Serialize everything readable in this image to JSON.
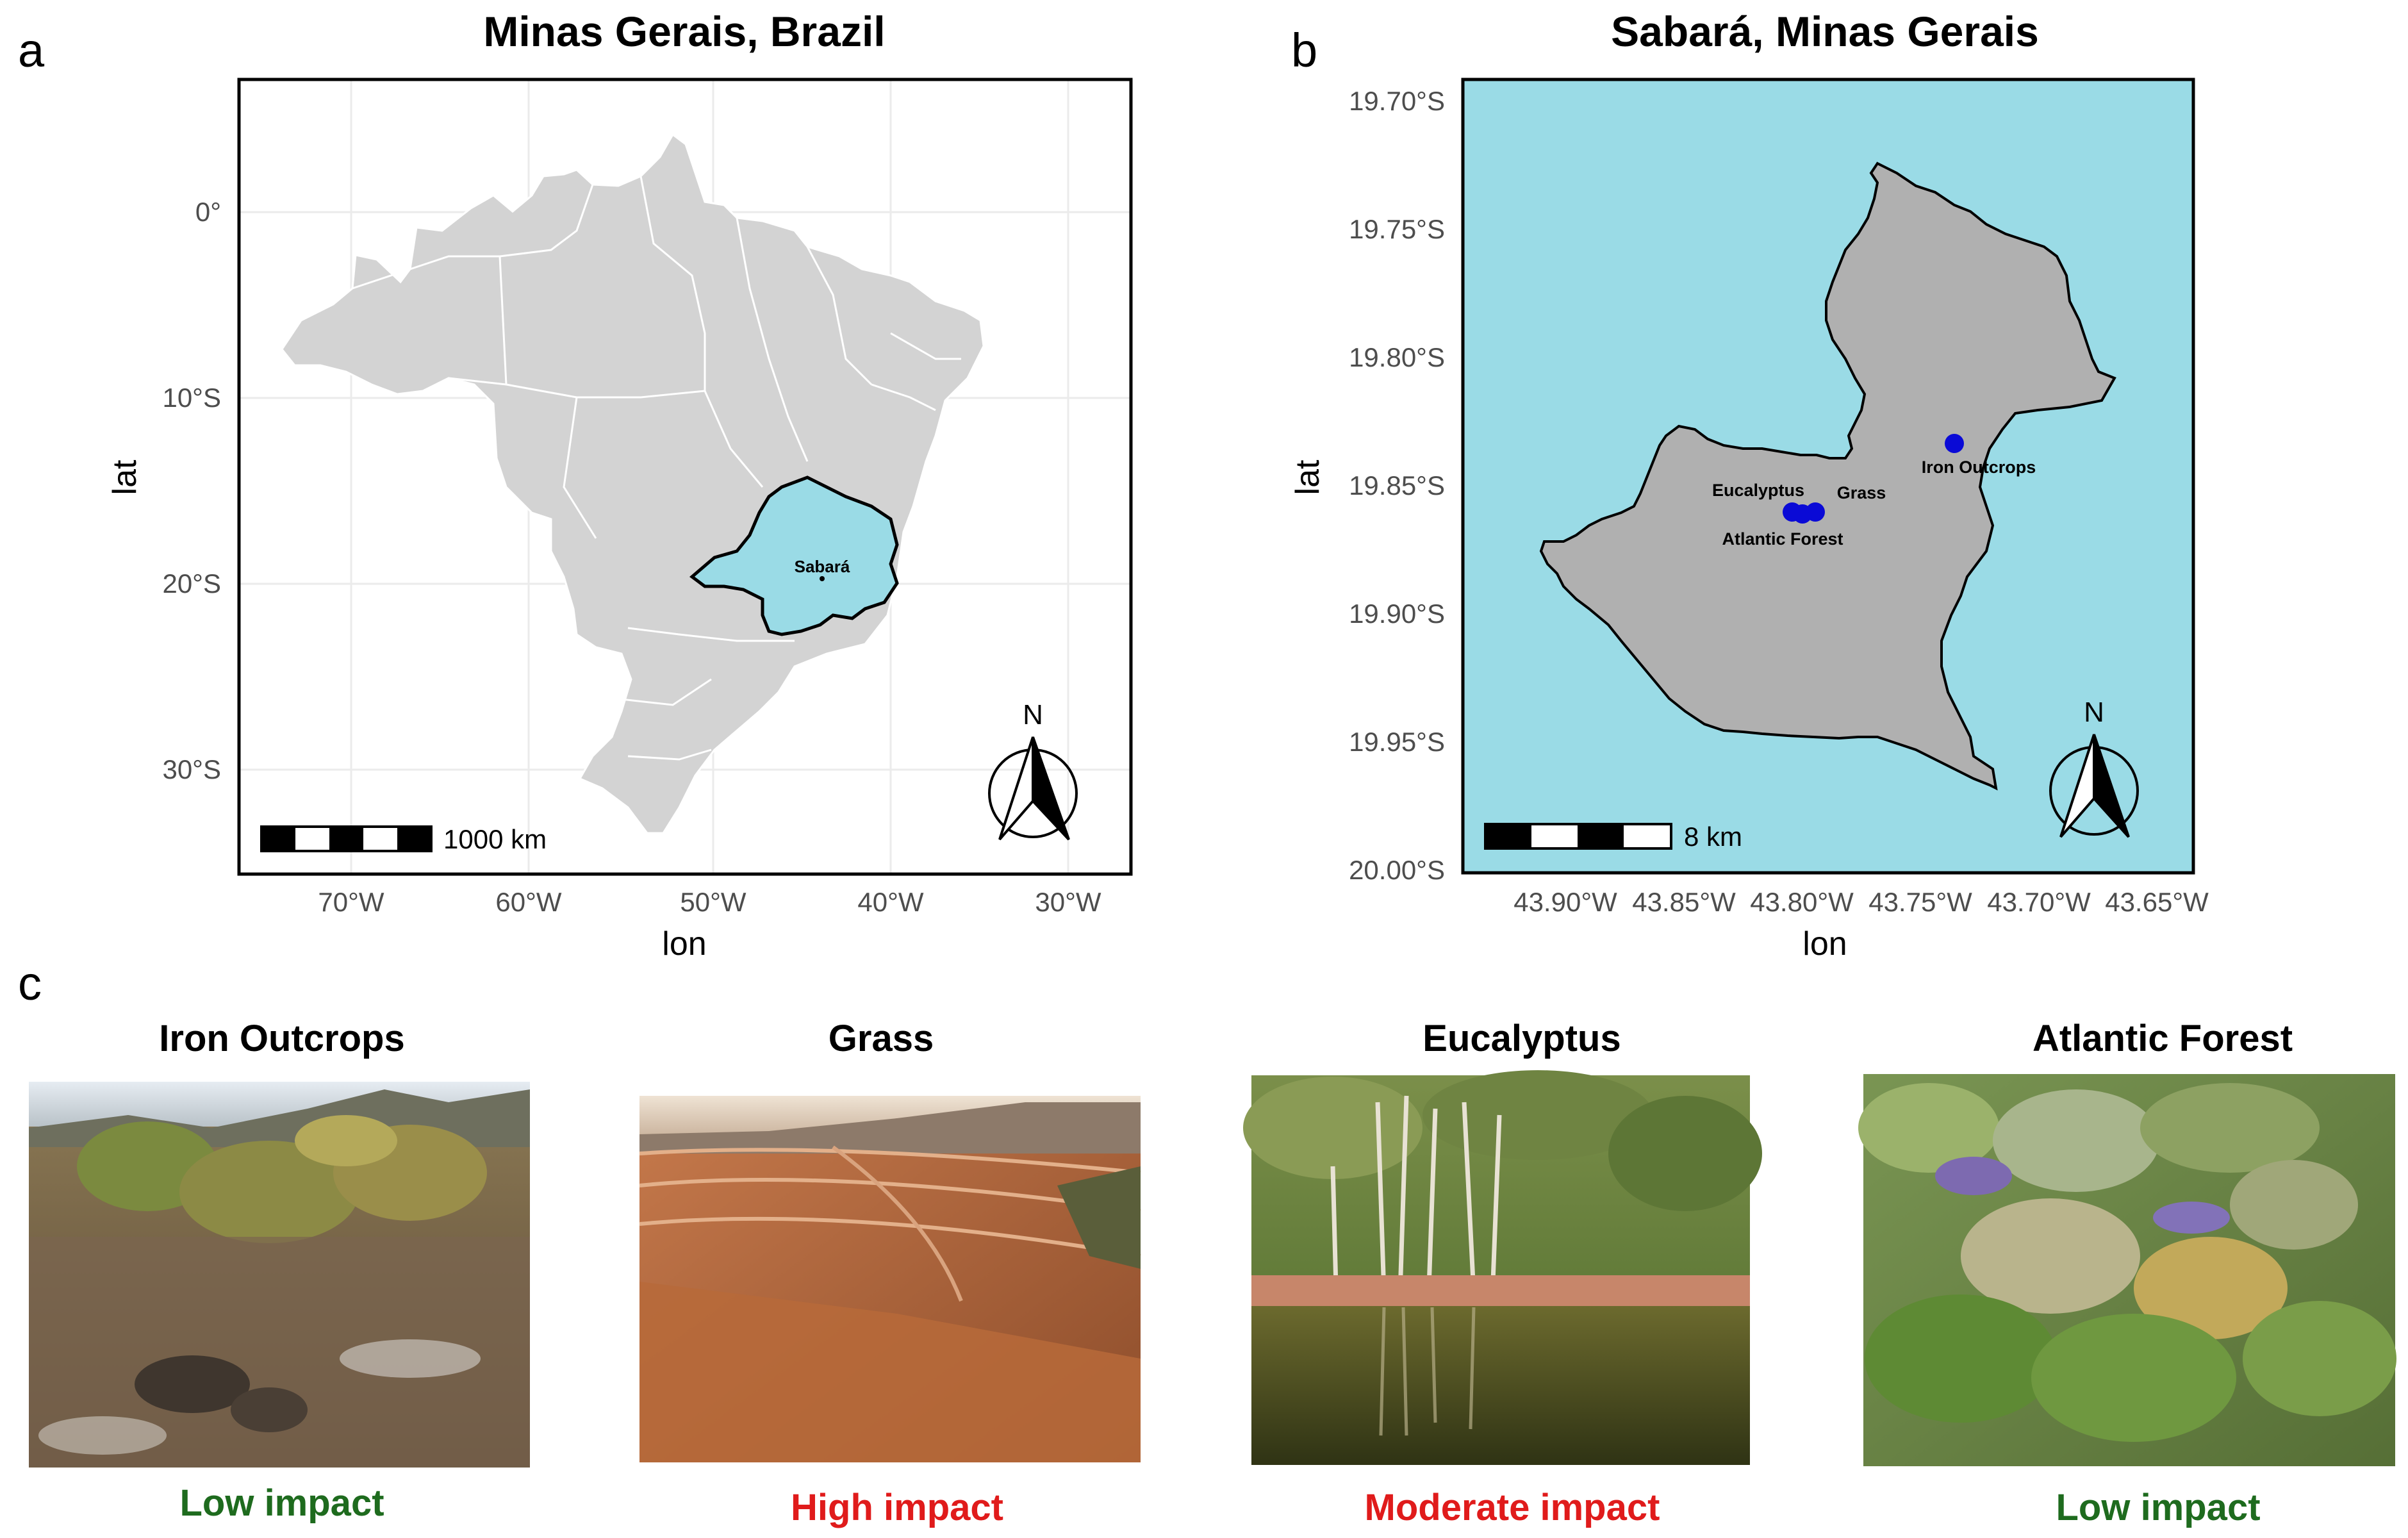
{
  "figure": {
    "panel_labels": [
      "a",
      "b",
      "c"
    ],
    "colors": {
      "land": "#d3d3d3",
      "highlight": "#9adbe6",
      "municipality": "#b0b0b0",
      "sampling_point": "#0a0ad6",
      "low_impact": "#1e6b1e",
      "high_impact": "#e01b1b"
    }
  },
  "map_a": {
    "title": "Minas Gerais, Brazil",
    "xlabel": "lon",
    "ylabel": "lat",
    "x_ticks": [
      "70°W",
      "60°W",
      "50°W",
      "40°W",
      "30°W"
    ],
    "y_ticks": [
      "0°",
      "10°S",
      "20°S",
      "30°S"
    ],
    "state_label": "Sabará",
    "scale_bar_label": "1000 km",
    "north_label": "N",
    "north_arrow_icon": "north-arrow-icon"
  },
  "map_b": {
    "title": "Sabará, Minas Gerais",
    "xlabel": "lon",
    "ylabel": "lat",
    "x_ticks": [
      "43.90°W",
      "43.85°W",
      "43.80°W",
      "43.75°W",
      "43.70°W",
      "43.65°W"
    ],
    "y_ticks": [
      "19.70°S",
      "19.75°S",
      "19.80°S",
      "19.85°S",
      "19.90°S",
      "19.95°S",
      "20.00°S"
    ],
    "sites": [
      {
        "label": "Iron Outcrops",
        "lon": -43.738,
        "lat": -19.833
      },
      {
        "label": "Grass",
        "lon": -43.798,
        "lat": -19.861
      },
      {
        "label": "Eucalyptus",
        "lon": -43.808,
        "lat": -19.86
      },
      {
        "label": "Atlantic Forest",
        "lon": -43.803,
        "lat": -19.862
      }
    ],
    "scale_bar_label": "8 km",
    "north_label": "N",
    "north_arrow_icon": "north-arrow-icon"
  },
  "photos": [
    {
      "title": "Iron Outcrops",
      "impact": "Low impact",
      "impact_level": "low"
    },
    {
      "title": "Grass",
      "impact": "High impact",
      "impact_level": "high"
    },
    {
      "title": "Eucalyptus",
      "impact": "Moderate impact",
      "impact_level": "moderate"
    },
    {
      "title": "Atlantic Forest",
      "impact": "Low impact",
      "impact_level": "low"
    }
  ]
}
